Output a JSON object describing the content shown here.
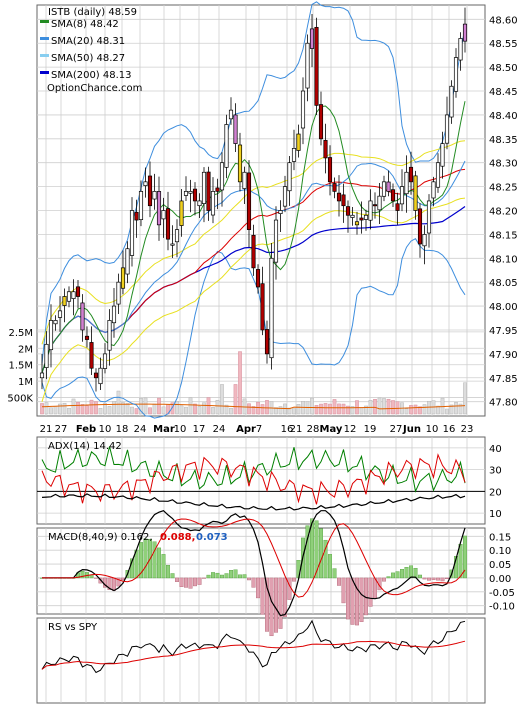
{
  "chart_data": [
    {
      "type": "candlestick",
      "panel": "price",
      "title": "ISTB (daily) 48.59",
      "watermark": "OptionChance.com",
      "legend": [
        {
          "label": "SMA(8) 48.42",
          "color": "#228b22"
        },
        {
          "label": "SMA(20) 48.31",
          "color": "#3e8ede"
        },
        {
          "label": "SMA(50) 48.27",
          "color": "#88cef0"
        },
        {
          "label": "SMA(200) 48.13",
          "color": "#0000cc"
        }
      ],
      "legend_placement": "top-left",
      "y_ticks": [
        "48.60",
        "48.55",
        "48.50",
        "48.45",
        "48.40",
        "48.35",
        "48.30",
        "48.25",
        "48.20",
        "48.15",
        "48.10",
        "48.05",
        "48.00",
        "47.95",
        "47.90",
        "47.85",
        "47.80"
      ],
      "ylim": [
        47.77,
        48.63
      ],
      "close": [
        47.86,
        47.92,
        47.97,
        47.97,
        47.99,
        48.02,
        48.03,
        48.03,
        48.02,
        47.95,
        47.93,
        47.87,
        47.85,
        47.87,
        47.9,
        47.97,
        48.0,
        48.05,
        48.08,
        48.12,
        48.2,
        48.18,
        48.24,
        48.26,
        48.21,
        48.24,
        48.17,
        48.2,
        48.14,
        48.13,
        48.16,
        48.22,
        48.24,
        48.24,
        48.22,
        48.22,
        48.28,
        48.2,
        48.24,
        48.24,
        48.3,
        48.38,
        48.41,
        48.34,
        48.26,
        48.28,
        48.16,
        48.08,
        48.04,
        47.95,
        47.9,
        48.1,
        48.18,
        48.2,
        48.25,
        48.3,
        48.33,
        48.36,
        48.45,
        48.55,
        48.58,
        48.42,
        48.35,
        48.31,
        48.26,
        48.24,
        48.22,
        48.21,
        48.19,
        48.19,
        48.17,
        48.18,
        48.19,
        48.22,
        48.21,
        48.23,
        48.26,
        48.24,
        48.22,
        48.2,
        48.25,
        48.28,
        48.26,
        48.2,
        48.13,
        48.15,
        48.22,
        48.26,
        48.3,
        48.34,
        48.4,
        48.46,
        48.52,
        48.56,
        48.59
      ],
      "volume_ticks": [
        "2.5M",
        "2M",
        "1.5M",
        "1M",
        "500K"
      ],
      "volume_ylim": [
        0,
        2.8
      ],
      "x_tick_labels": [
        "21",
        "27",
        "Feb",
        "10",
        "18",
        "24",
        "Mar",
        "10",
        "17",
        "24",
        "Apr",
        "7",
        "16",
        "21",
        "28",
        "May",
        "12",
        "19",
        "27",
        "Jun",
        "10",
        "16",
        "23"
      ]
    },
    {
      "type": "line",
      "panel": "ADX",
      "title": "ADX(14) 14.42",
      "y_ticks": [
        "40",
        "30",
        "20",
        "10"
      ],
      "ylim": [
        5,
        45
      ],
      "series_colors": [
        "#008000",
        "#dd0000",
        "#000000"
      ]
    },
    {
      "type": "line",
      "panel": "MACD",
      "title": "MACD(8,40,9) 0.162,",
      "title_values": [
        {
          "text": "0.088,",
          "color": "#dd0000"
        },
        {
          "text": "0.073",
          "color": "#1f5fbf"
        }
      ],
      "y_ticks": [
        "0.15",
        "0.10",
        "0.05",
        "0.00",
        "-0.05",
        "-0.10"
      ],
      "ylim": [
        -0.13,
        0.18
      ],
      "series_colors": [
        "#000000",
        "#dd0000",
        "#6fbf5a"
      ]
    },
    {
      "type": "line",
      "panel": "RS",
      "title": "RS vs SPY",
      "series_colors": [
        "#000000",
        "#dd0000"
      ]
    }
  ]
}
